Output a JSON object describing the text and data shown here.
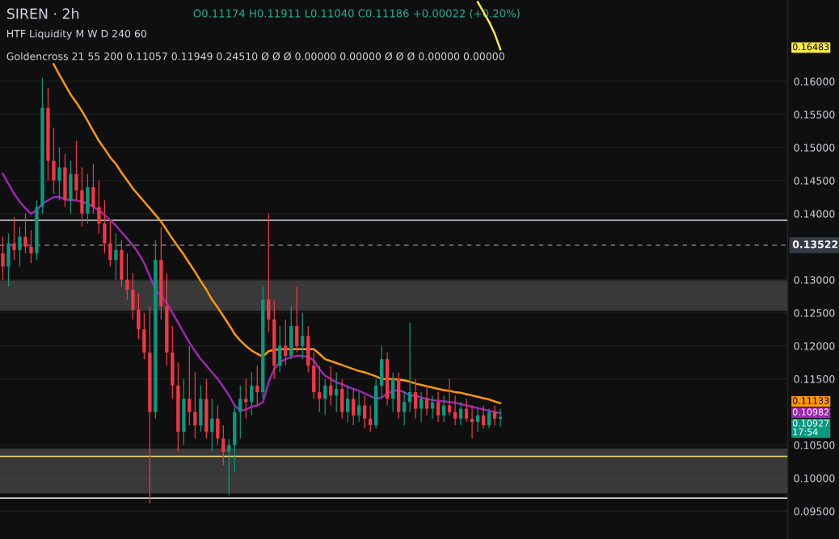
{
  "chart_data": {
    "type": "candlestick",
    "title": "SIREN · 2h",
    "subtitle": "O0.11174 H0.11911 L0.11040 C0.11186 +0.00022 (+0.20%)",
    "categories": [
      null,
      null,
      null,
      null,
      null,
      null,
      null,
      null,
      null,
      null,
      null,
      null,
      null,
      null,
      null,
      null,
      null,
      null,
      null,
      null,
      null,
      null,
      null,
      null,
      null,
      null,
      null,
      null,
      null,
      null,
      null,
      null,
      null,
      null,
      null,
      null,
      null,
      null,
      null,
      null,
      null,
      null,
      null,
      null,
      null,
      null,
      null,
      null,
      null,
      null,
      null,
      null,
      null,
      null,
      null,
      null,
      null,
      null,
      null,
      null,
      null,
      null,
      null,
      null,
      null,
      null,
      null,
      null,
      null,
      null,
      null,
      null,
      null,
      null,
      null,
      null,
      null,
      null,
      null,
      null,
      null,
      null,
      null,
      null,
      null,
      null,
      null,
      null,
      null
    ],
    "ohlc": [
      [
        0.134,
        0.1365,
        0.13,
        0.132
      ],
      [
        0.132,
        0.137,
        0.129,
        0.1355
      ],
      [
        0.1355,
        0.1395,
        0.133,
        0.1345
      ],
      [
        0.1345,
        0.138,
        0.132,
        0.1365
      ],
      [
        0.1365,
        0.14,
        0.134,
        0.135
      ],
      [
        0.135,
        0.1375,
        0.1325,
        0.134
      ],
      [
        0.134,
        0.142,
        0.133,
        0.141
      ],
      [
        0.141,
        0.1605,
        0.14,
        0.156
      ],
      [
        0.156,
        0.159,
        0.145,
        0.148
      ],
      [
        0.148,
        0.153,
        0.143,
        0.145
      ],
      [
        0.145,
        0.15,
        0.142,
        0.147
      ],
      [
        0.147,
        0.149,
        0.141,
        0.142
      ],
      [
        0.142,
        0.148,
        0.14,
        0.146
      ],
      [
        0.146,
        0.151,
        0.142,
        0.1435
      ],
      [
        0.1435,
        0.147,
        0.138,
        0.14
      ],
      [
        0.14,
        0.146,
        0.1385,
        0.144
      ],
      [
        0.144,
        0.1475,
        0.14,
        0.141
      ],
      [
        0.141,
        0.145,
        0.137,
        0.1385
      ],
      [
        0.1385,
        0.142,
        0.134,
        0.1355
      ],
      [
        0.1355,
        0.139,
        0.132,
        0.133
      ],
      [
        0.133,
        0.137,
        0.13,
        0.1345
      ],
      [
        0.1345,
        0.136,
        0.129,
        0.13
      ],
      [
        0.13,
        0.134,
        0.127,
        0.1285
      ],
      [
        0.1285,
        0.131,
        0.124,
        0.1255
      ],
      [
        0.1255,
        0.128,
        0.121,
        0.1225
      ],
      [
        0.1225,
        0.125,
        0.118,
        0.119
      ],
      [
        0.119,
        0.126,
        0.0962,
        0.11
      ],
      [
        0.11,
        0.136,
        0.109,
        0.133
      ],
      [
        0.133,
        0.138,
        0.124,
        0.126
      ],
      [
        0.126,
        0.131,
        0.117,
        0.119
      ],
      [
        0.119,
        0.123,
        0.112,
        0.114
      ],
      [
        0.114,
        0.1175,
        0.104,
        0.107
      ],
      [
        0.107,
        0.115,
        0.105,
        0.112
      ],
      [
        0.112,
        0.12,
        0.108,
        0.11
      ],
      [
        0.11,
        0.116,
        0.106,
        0.108
      ],
      [
        0.108,
        0.114,
        0.107,
        0.112
      ],
      [
        0.112,
        0.115,
        0.106,
        0.107
      ],
      [
        0.107,
        0.112,
        0.104,
        0.109
      ],
      [
        0.109,
        0.111,
        0.105,
        0.106
      ],
      [
        0.106,
        0.108,
        0.102,
        0.104
      ],
      [
        0.104,
        0.106,
        0.0975,
        0.105
      ],
      [
        0.105,
        0.111,
        0.101,
        0.11
      ],
      [
        0.11,
        0.114,
        0.106,
        0.112
      ],
      [
        0.112,
        0.115,
        0.109,
        0.1115
      ],
      [
        0.1115,
        0.116,
        0.1095,
        0.114
      ],
      [
        0.114,
        0.117,
        0.111,
        0.113
      ],
      [
        0.113,
        0.129,
        0.112,
        0.127
      ],
      [
        0.127,
        0.14,
        0.122,
        0.124
      ],
      [
        0.124,
        0.127,
        0.115,
        0.117
      ],
      [
        0.117,
        0.123,
        0.116,
        0.12
      ],
      [
        0.12,
        0.124,
        0.117,
        0.1185
      ],
      [
        0.1185,
        0.126,
        0.118,
        0.123
      ],
      [
        0.123,
        0.129,
        0.119,
        0.12
      ],
      [
        0.12,
        0.125,
        0.118,
        0.1215
      ],
      [
        0.1215,
        0.123,
        0.116,
        0.117
      ],
      [
        0.117,
        0.119,
        0.112,
        0.113
      ],
      [
        0.113,
        0.117,
        0.11,
        0.112
      ],
      [
        0.112,
        0.115,
        0.1095,
        0.114
      ],
      [
        0.114,
        0.117,
        0.111,
        0.1125
      ],
      [
        0.1125,
        0.116,
        0.11,
        0.1135
      ],
      [
        0.1135,
        0.115,
        0.109,
        0.11
      ],
      [
        0.11,
        0.114,
        0.1085,
        0.112
      ],
      [
        0.112,
        0.1135,
        0.108,
        0.1095
      ],
      [
        0.1095,
        0.113,
        0.1085,
        0.111
      ],
      [
        0.111,
        0.1125,
        0.1075,
        0.109
      ],
      [
        0.109,
        0.111,
        0.107,
        0.108
      ],
      [
        0.108,
        0.115,
        0.1075,
        0.114
      ],
      [
        0.114,
        0.12,
        0.112,
        0.118
      ],
      [
        0.118,
        0.119,
        0.111,
        0.112
      ],
      [
        0.112,
        0.116,
        0.11,
        0.115
      ],
      [
        0.115,
        0.116,
        0.109,
        0.11
      ],
      [
        0.11,
        0.113,
        0.108,
        0.1115
      ],
      [
        0.1115,
        0.1235,
        0.11,
        0.113
      ],
      [
        0.113,
        0.115,
        0.109,
        0.1105
      ],
      [
        0.1105,
        0.113,
        0.1085,
        0.112
      ],
      [
        0.112,
        0.114,
        0.1095,
        0.1105
      ],
      [
        0.1105,
        0.1125,
        0.109,
        0.1115
      ],
      [
        0.1115,
        0.113,
        0.1085,
        0.1095
      ],
      [
        0.1095,
        0.1125,
        0.1085,
        0.111
      ],
      [
        0.111,
        0.115,
        0.1095,
        0.11
      ],
      [
        0.11,
        0.1125,
        0.108,
        0.109
      ],
      [
        0.109,
        0.1115,
        0.108,
        0.1105
      ],
      [
        0.1105,
        0.112,
        0.1085,
        0.109
      ],
      [
        0.109,
        0.111,
        0.106,
        0.1085
      ],
      [
        0.1085,
        0.1105,
        0.107,
        0.1095
      ],
      [
        0.1095,
        0.111,
        0.1075,
        0.108
      ],
      [
        0.108,
        0.1105,
        0.1075,
        0.11
      ],
      [
        0.11,
        0.111,
        0.108,
        0.109
      ],
      [
        0.109,
        0.1105,
        0.1078,
        0.10927
      ]
    ],
    "colors": [
      "#f23645",
      "#089981",
      "#f23645",
      "#089981",
      "#f23645",
      "#f23645",
      "#089981",
      "#089981",
      "#f23645",
      "#f23645",
      "#089981",
      "#f23645",
      "#089981",
      "#f23645",
      "#f23645",
      "#089981",
      "#f23645",
      "#f23645",
      "#f23645",
      "#f23645",
      "#089981",
      "#f23645",
      "#f23645",
      "#f23645",
      "#f23645",
      "#f23645",
      "#f23645",
      "#089981",
      "#f23645",
      "#f23645",
      "#f23645",
      "#f23645",
      "#089981",
      "#f23645",
      "#f23645",
      "#089981",
      "#f23645",
      "#089981",
      "#f23645",
      "#f23645",
      "#089981",
      "#089981",
      "#089981",
      "#f23645",
      "#089981",
      "#f23645",
      "#089981",
      "#f23645",
      "#f23645",
      "#089981",
      "#f23645",
      "#089981",
      "#f23645",
      "#089981",
      "#f23645",
      "#f23645",
      "#f23645",
      "#089981",
      "#f23645",
      "#089981",
      "#f23645",
      "#089981",
      "#f23645",
      "#089981",
      "#f23645",
      "#f23645",
      "#089981",
      "#089981",
      "#f23645",
      "#089981",
      "#f23645",
      "#089981",
      "#089981",
      "#f23645",
      "#089981",
      "#f23645",
      "#089981",
      "#f23645",
      "#089981",
      "#f23645",
      "#f23645",
      "#089981",
      "#f23645",
      "#f23645",
      "#089981",
      "#f23645",
      "#089981",
      "#f23645",
      "#089981"
    ],
    "series": [
      {
        "type": "line",
        "color": "#9c27b0",
        "values": [
          0.146,
          0.1445,
          0.143,
          0.1418,
          0.1408,
          0.14,
          0.1405,
          0.1415,
          0.142,
          0.1425,
          0.1425,
          0.1422,
          0.142,
          0.142,
          0.1418,
          0.1415,
          0.141,
          0.1405,
          0.1398,
          0.139,
          0.1382,
          0.1372,
          0.1362,
          0.1352,
          0.134,
          0.1325,
          0.1305,
          0.1285,
          0.1275,
          0.1265,
          0.125,
          0.1235,
          0.122,
          0.1205,
          0.1192,
          0.118,
          0.117,
          0.116,
          0.115,
          0.1138,
          0.1125,
          0.111,
          0.1102,
          0.1104,
          0.1108,
          0.111,
          0.1115,
          0.1145,
          0.1165,
          0.1175,
          0.118,
          0.1183,
          0.1185,
          0.1185,
          0.1183,
          0.1178,
          0.1165,
          0.1155,
          0.115,
          0.1145,
          0.1142,
          0.1138,
          0.1135,
          0.1132,
          0.1128,
          0.1124,
          0.112,
          0.1122,
          0.1128,
          0.1132,
          0.1133,
          0.113,
          0.1125,
          0.1125,
          0.1122,
          0.112,
          0.1118,
          0.1117,
          0.1116,
          0.1115,
          0.1114,
          0.1112,
          0.111,
          0.1108,
          0.1106,
          0.1104,
          0.1102,
          0.11,
          0.10982
        ]
      },
      {
        "type": "line",
        "color": "#ff9800",
        "values": [
          null,
          null,
          null,
          null,
          null,
          null,
          null,
          null,
          null,
          0.1626,
          0.161,
          0.1595,
          0.158,
          0.1568,
          0.1555,
          0.154,
          0.1525,
          0.151,
          0.1498,
          0.1485,
          0.1475,
          0.1462,
          0.145,
          0.1438,
          0.1428,
          0.1418,
          0.1408,
          0.1398,
          0.1388,
          0.1375,
          0.1362,
          0.135,
          0.1338,
          0.1325,
          0.1312,
          0.1298,
          0.1285,
          0.127,
          0.1258,
          0.1245,
          0.1232,
          0.1218,
          0.1208,
          0.12,
          0.1193,
          0.1188,
          0.1184,
          0.1192,
          0.1194,
          0.1195,
          0.1195,
          0.1195,
          0.1195,
          0.1195,
          0.1195,
          0.1195,
          0.1188,
          0.118,
          0.1177,
          0.1174,
          0.1171,
          0.1168,
          0.1165,
          0.1162,
          0.116,
          0.1157,
          0.1154,
          0.115,
          0.115,
          0.115,
          0.1149,
          0.1148,
          0.1146,
          0.1143,
          0.1141,
          0.1139,
          0.1137,
          0.1135,
          0.1133,
          0.1132,
          0.113,
          0.1129,
          0.1127,
          0.1125,
          0.1123,
          0.1121,
          0.1119,
          0.1116,
          0.11133
        ]
      },
      {
        "type": "line",
        "color": "#ffeb3b",
        "values": [
          null,
          null,
          null,
          null,
          null,
          null,
          null,
          null,
          null,
          null,
          null,
          null,
          null,
          null,
          null,
          null,
          null,
          null,
          null,
          null,
          null,
          null,
          null,
          null,
          null,
          null,
          null,
          null,
          null,
          null,
          null,
          null,
          null,
          null,
          null,
          null,
          null,
          null,
          null,
          null,
          null,
          null,
          null,
          null,
          null,
          null,
          null,
          null,
          null,
          null,
          null,
          null,
          null,
          null,
          null,
          null,
          null,
          null,
          null,
          null,
          null,
          null,
          null,
          null,
          null,
          null,
          null,
          null,
          null,
          null,
          null,
          null,
          null,
          null,
          null,
          null,
          null,
          null,
          null,
          null,
          null,
          null,
          null,
          null,
          0.172,
          0.1705,
          0.169,
          0.1672,
          0.16483
        ]
      }
    ],
    "ylim": [
      0.0908,
      0.1723
    ],
    "yticks": [
      {
        "value": 0.095,
        "label": "0.09500"
      },
      {
        "value": 0.1,
        "label": "0.10000"
      },
      {
        "value": 0.105,
        "label": "0.10500"
      },
      {
        "value": 0.115,
        "label": "0.11500"
      },
      {
        "value": 0.12,
        "label": "0.12000"
      },
      {
        "value": 0.125,
        "label": "0.12500"
      },
      {
        "value": 0.13,
        "label": "0.13000"
      },
      {
        "value": 0.14,
        "label": "0.14000"
      },
      {
        "value": 0.145,
        "label": "0.14500"
      },
      {
        "value": 0.15,
        "label": "0.15000"
      },
      {
        "value": 0.155,
        "label": "0.15500"
      },
      {
        "value": 0.16,
        "label": "0.16000"
      }
    ],
    "tick_labels": "y",
    "grid": "y",
    "ref_lines": [
      {
        "axis": "y",
        "value": 0.13522,
        "label": "0.13522",
        "color": "#9598a1",
        "line_style": "dashed"
      },
      {
        "axis": "y",
        "value": 0.139,
        "color": "#d1d4dc",
        "line_style": "solid"
      },
      {
        "axis": "y",
        "value": 0.1033,
        "color": "#f7e27a",
        "line_style": "solid"
      },
      {
        "axis": "y",
        "value": 0.097,
        "color": "#ffffff",
        "line_style": "solid"
      }
    ],
    "bands": [
      {
        "axis": "y",
        "from": 0.1253,
        "to": 0.1299,
        "color": "#5d5d5d"
      },
      {
        "axis": "y",
        "from": 0.0977,
        "to": 0.1045,
        "color": "#5d5d5d"
      }
    ],
    "annotations": [
      "HTF Liquidity M W D 240 60",
      "Goldencross 21 55 200 0.11057 0.11949 0.24510 Ø Ø Ø 0.00000 0.00000 Ø Ø Ø 0.00000 0.00000",
      "0.16483",
      "0.11133",
      "0.10982",
      "0.10927\n17:54"
    ]
  }
}
